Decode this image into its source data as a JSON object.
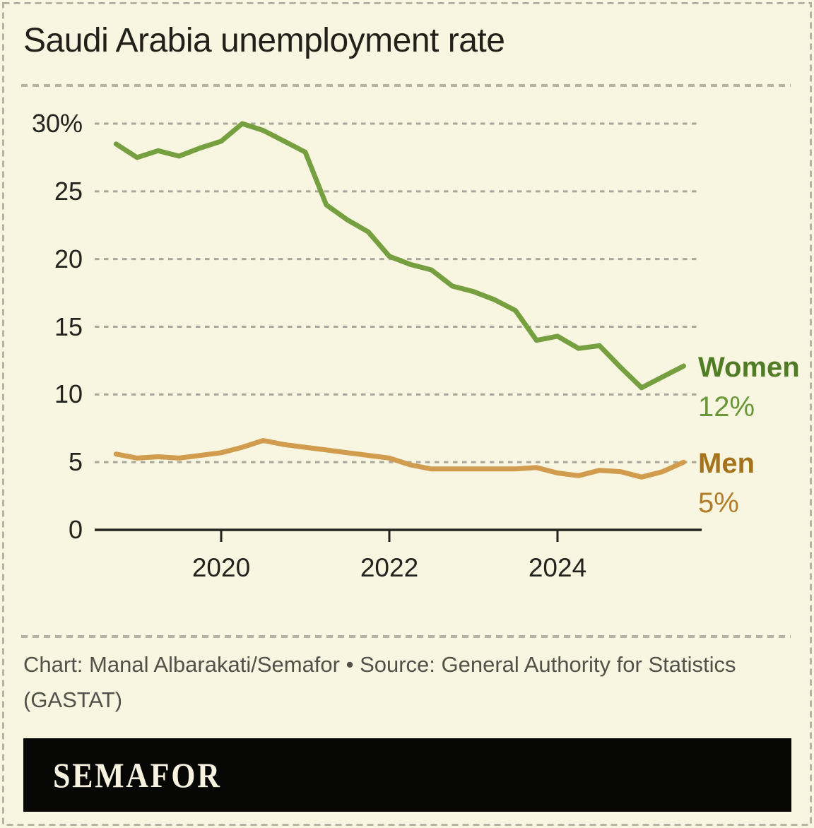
{
  "title": "Saudi Arabia unemployment rate",
  "colors": {
    "background": "#f8f5e0",
    "border_dash": "#b4b3a5",
    "gridline": "#a8a79a",
    "axis": "#23231d",
    "women_line": "#76a040",
    "women_label": "#507c26",
    "women_value": "#699737",
    "men_line": "#d19c4e",
    "men_label": "#a6731d",
    "men_value": "#b07e28",
    "footer_text": "#51514a",
    "banner_bg": "#060605",
    "banner_text": "#f6f2df"
  },
  "chart_data": {
    "type": "line",
    "title": "Saudi Arabia unemployment rate",
    "xlabel": "",
    "ylabel": "",
    "y_unit": "%",
    "ylim": [
      0,
      31.5
    ],
    "xlim": [
      2018.5,
      2025.71
    ],
    "grid": "horizontal dashed",
    "legend_position": "end-of-line labels at right",
    "yticks": [
      0,
      5,
      10,
      15,
      20,
      25,
      30
    ],
    "ytick_labels": [
      "0",
      "5",
      "10",
      "15",
      "20",
      "25",
      "30%"
    ],
    "xticks": [
      2020,
      2022,
      2024
    ],
    "xtick_labels": [
      "2020",
      "2022",
      "2024"
    ],
    "x": [
      2018.75,
      2019.0,
      2019.25,
      2019.5,
      2019.75,
      2020.0,
      2020.25,
      2020.5,
      2020.75,
      2021.0,
      2021.25,
      2021.5,
      2021.75,
      2022.0,
      2022.25,
      2022.5,
      2022.75,
      2023.0,
      2023.25,
      2023.5,
      2023.75,
      2024.0,
      2024.25,
      2024.5,
      2024.75,
      2025.0,
      2025.25,
      2025.5
    ],
    "series": [
      {
        "name": "Women",
        "end_label": "Women",
        "end_value_label": "12%",
        "color": "#76a040",
        "name_color": "#507c26",
        "value_color": "#699737",
        "values": [
          28.5,
          27.5,
          28.0,
          27.6,
          28.2,
          28.7,
          30.0,
          29.5,
          28.7,
          27.9,
          24.0,
          22.9,
          22.0,
          20.2,
          19.6,
          19.2,
          18.0,
          17.6,
          17.0,
          16.2,
          14.0,
          14.3,
          13.4,
          13.6,
          12.0,
          10.5,
          11.3,
          12.1
        ]
      },
      {
        "name": "Men",
        "end_label": "Men",
        "end_value_label": "5%",
        "color": "#d19c4e",
        "name_color": "#a6731d",
        "value_color": "#b07e28",
        "values": [
          5.6,
          5.3,
          5.4,
          5.3,
          5.5,
          5.7,
          6.1,
          6.6,
          6.3,
          6.1,
          5.9,
          5.7,
          5.5,
          5.3,
          4.8,
          4.5,
          4.5,
          4.5,
          4.5,
          4.5,
          4.6,
          4.2,
          4.0,
          4.4,
          4.3,
          3.9,
          4.3,
          5.0
        ]
      }
    ]
  },
  "footer": {
    "credit": "Chart: Manal Albarakati/Semafor • Source: General Authority for Statistics (GASTAT)"
  },
  "logo": {
    "text": "SEMAFOR"
  }
}
